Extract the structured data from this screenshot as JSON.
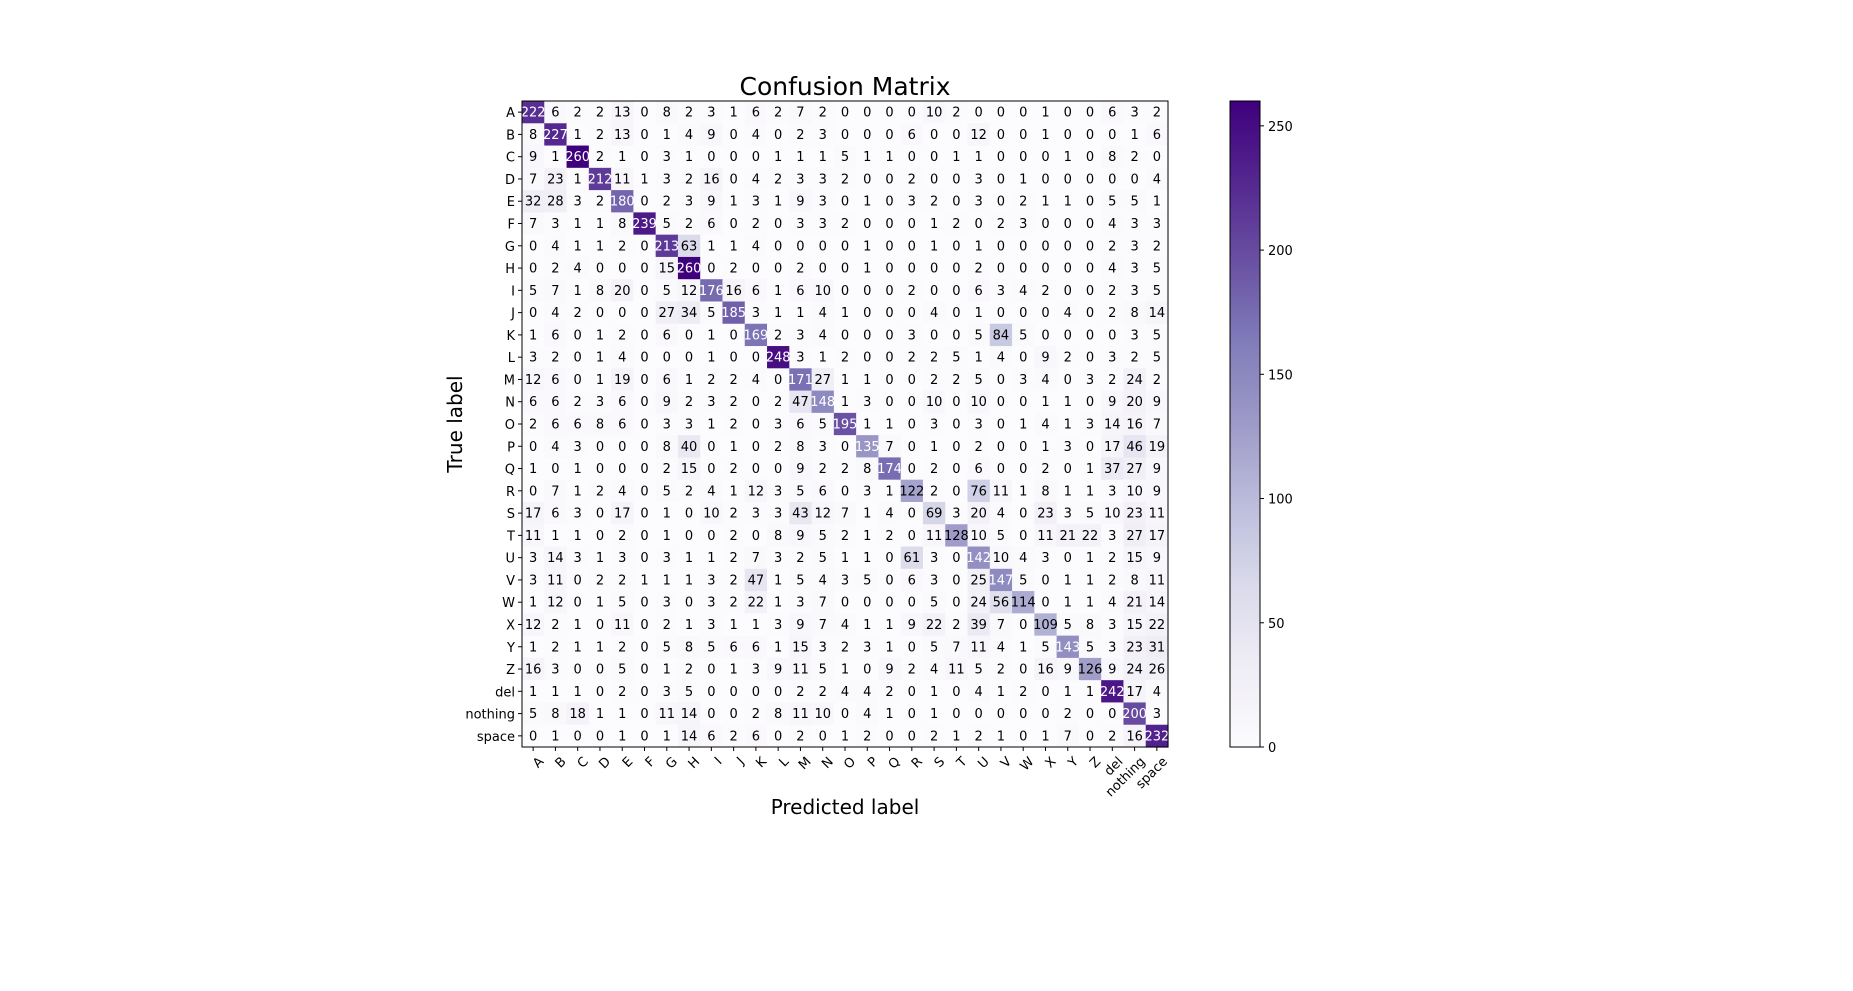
{
  "chart_data": {
    "type": "heatmap",
    "title": "Confusion Matrix",
    "xlabel": "Predicted label",
    "ylabel": "True label",
    "labels": [
      "A",
      "B",
      "C",
      "D",
      "E",
      "F",
      "G",
      "H",
      "I",
      "J",
      "K",
      "L",
      "M",
      "N",
      "O",
      "P",
      "Q",
      "R",
      "S",
      "T",
      "U",
      "V",
      "W",
      "X",
      "Y",
      "Z",
      "del",
      "nothing",
      "space"
    ],
    "matrix": [
      [
        222,
        6,
        2,
        2,
        13,
        0,
        8,
        2,
        3,
        1,
        6,
        2,
        7,
        2,
        0,
        0,
        0,
        0,
        10,
        2,
        0,
        0,
        0,
        1,
        0,
        0,
        6,
        3,
        2
      ],
      [
        8,
        227,
        1,
        2,
        13,
        0,
        1,
        4,
        9,
        0,
        4,
        0,
        2,
        3,
        0,
        0,
        0,
        6,
        0,
        0,
        12,
        0,
        0,
        1,
        0,
        0,
        0,
        1,
        6
      ],
      [
        9,
        1,
        260,
        2,
        1,
        0,
        3,
        1,
        0,
        0,
        0,
        1,
        1,
        1,
        5,
        1,
        1,
        0,
        0,
        1,
        1,
        0,
        0,
        0,
        1,
        0,
        8,
        2,
        0
      ],
      [
        7,
        23,
        1,
        212,
        11,
        1,
        3,
        2,
        16,
        0,
        4,
        2,
        3,
        3,
        2,
        0,
        0,
        2,
        0,
        0,
        3,
        0,
        1,
        0,
        0,
        0,
        0,
        0,
        4
      ],
      [
        32,
        28,
        3,
        2,
        180,
        0,
        2,
        3,
        9,
        1,
        3,
        1,
        9,
        3,
        0,
        1,
        0,
        3,
        2,
        0,
        3,
        0,
        2,
        1,
        1,
        0,
        5,
        5,
        1
      ],
      [
        7,
        3,
        1,
        1,
        8,
        239,
        5,
        2,
        6,
        0,
        2,
        0,
        3,
        3,
        2,
        0,
        0,
        0,
        1,
        2,
        0,
        2,
        3,
        0,
        0,
        0,
        4,
        3,
        3
      ],
      [
        0,
        4,
        1,
        1,
        2,
        0,
        213,
        63,
        1,
        1,
        4,
        0,
        0,
        0,
        0,
        1,
        0,
        0,
        1,
        0,
        1,
        0,
        0,
        0,
        0,
        0,
        2,
        3,
        2
      ],
      [
        0,
        2,
        4,
        0,
        0,
        0,
        15,
        260,
        0,
        2,
        0,
        0,
        2,
        0,
        0,
        1,
        0,
        0,
        0,
        0,
        2,
        0,
        0,
        0,
        0,
        0,
        4,
        3,
        5
      ],
      [
        5,
        7,
        1,
        8,
        20,
        0,
        5,
        12,
        176,
        16,
        6,
        1,
        6,
        10,
        0,
        0,
        0,
        2,
        0,
        0,
        6,
        3,
        4,
        2,
        0,
        0,
        2,
        3,
        5
      ],
      [
        0,
        4,
        2,
        0,
        0,
        0,
        27,
        34,
        5,
        185,
        3,
        1,
        1,
        4,
        1,
        0,
        0,
        0,
        4,
        0,
        1,
        0,
        0,
        0,
        4,
        0,
        2,
        8,
        14
      ],
      [
        1,
        6,
        0,
        1,
        2,
        0,
        6,
        0,
        1,
        0,
        169,
        2,
        3,
        4,
        0,
        0,
        0,
        3,
        0,
        0,
        5,
        84,
        5,
        0,
        0,
        0,
        0,
        3,
        5
      ],
      [
        3,
        2,
        0,
        1,
        4,
        0,
        0,
        0,
        1,
        0,
        0,
        248,
        3,
        1,
        2,
        0,
        0,
        2,
        2,
        5,
        1,
        4,
        0,
        9,
        2,
        0,
        3,
        2,
        5
      ],
      [
        12,
        6,
        0,
        1,
        19,
        0,
        6,
        1,
        2,
        2,
        4,
        0,
        171,
        27,
        1,
        1,
        0,
        0,
        2,
        2,
        5,
        0,
        3,
        4,
        0,
        3,
        2,
        24,
        2
      ],
      [
        6,
        6,
        2,
        3,
        6,
        0,
        9,
        2,
        3,
        2,
        0,
        2,
        47,
        148,
        1,
        3,
        0,
        0,
        10,
        0,
        10,
        0,
        0,
        1,
        1,
        0,
        9,
        20,
        9
      ],
      [
        2,
        6,
        6,
        8,
        6,
        0,
        3,
        3,
        1,
        2,
        0,
        3,
        6,
        5,
        195,
        1,
        1,
        0,
        3,
        0,
        3,
        0,
        1,
        4,
        1,
        3,
        14,
        16,
        7
      ],
      [
        0,
        4,
        3,
        0,
        0,
        0,
        8,
        40,
        0,
        1,
        0,
        2,
        8,
        3,
        0,
        135,
        7,
        0,
        1,
        0,
        2,
        0,
        0,
        1,
        3,
        0,
        17,
        46,
        19
      ],
      [
        1,
        0,
        1,
        0,
        0,
        0,
        2,
        15,
        0,
        2,
        0,
        0,
        9,
        2,
        2,
        8,
        174,
        0,
        2,
        0,
        6,
        0,
        0,
        2,
        0,
        1,
        37,
        27,
        9
      ],
      [
        0,
        7,
        1,
        2,
        4,
        0,
        5,
        2,
        4,
        1,
        12,
        3,
        5,
        6,
        0,
        3,
        1,
        122,
        2,
        0,
        76,
        11,
        1,
        8,
        1,
        1,
        3,
        10,
        9
      ],
      [
        17,
        6,
        3,
        0,
        17,
        0,
        1,
        0,
        10,
        2,
        3,
        3,
        43,
        12,
        7,
        1,
        4,
        0,
        69,
        3,
        20,
        4,
        0,
        23,
        3,
        5,
        10,
        23,
        11
      ],
      [
        11,
        1,
        1,
        0,
        2,
        0,
        1,
        0,
        0,
        2,
        0,
        8,
        9,
        5,
        2,
        1,
        2,
        0,
        11,
        128,
        10,
        5,
        0,
        11,
        21,
        22,
        3,
        27,
        17
      ],
      [
        3,
        14,
        3,
        1,
        3,
        0,
        3,
        1,
        1,
        2,
        7,
        3,
        2,
        5,
        1,
        1,
        0,
        61,
        3,
        0,
        142,
        10,
        4,
        3,
        0,
        1,
        2,
        15,
        9
      ],
      [
        3,
        11,
        0,
        2,
        2,
        1,
        1,
        1,
        3,
        2,
        47,
        1,
        5,
        4,
        3,
        5,
        0,
        6,
        3,
        0,
        25,
        147,
        5,
        0,
        1,
        1,
        2,
        8,
        11
      ],
      [
        1,
        12,
        0,
        1,
        5,
        0,
        3,
        0,
        3,
        2,
        22,
        1,
        3,
        7,
        0,
        0,
        0,
        0,
        5,
        0,
        24,
        56,
        114,
        0,
        1,
        1,
        4,
        21,
        14
      ],
      [
        12,
        2,
        1,
        0,
        11,
        0,
        2,
        1,
        3,
        1,
        1,
        3,
        9,
        7,
        4,
        1,
        1,
        9,
        22,
        2,
        39,
        7,
        0,
        109,
        5,
        8,
        3,
        15,
        22
      ],
      [
        1,
        2,
        1,
        1,
        2,
        0,
        5,
        8,
        5,
        6,
        6,
        1,
        15,
        3,
        2,
        3,
        1,
        0,
        5,
        7,
        11,
        4,
        1,
        5,
        143,
        5,
        3,
        23,
        31
      ],
      [
        16,
        3,
        0,
        0,
        5,
        0,
        1,
        2,
        0,
        1,
        3,
        9,
        11,
        5,
        1,
        0,
        9,
        2,
        4,
        11,
        5,
        2,
        0,
        16,
        9,
        126,
        9,
        24,
        26
      ],
      [
        1,
        1,
        1,
        0,
        2,
        0,
        3,
        5,
        0,
        0,
        0,
        0,
        2,
        2,
        4,
        4,
        2,
        0,
        1,
        0,
        4,
        1,
        2,
        0,
        1,
        1,
        242,
        17,
        4
      ],
      [
        5,
        8,
        18,
        1,
        1,
        0,
        11,
        14,
        0,
        0,
        2,
        8,
        11,
        10,
        0,
        4,
        1,
        0,
        1,
        0,
        0,
        0,
        0,
        0,
        2,
        0,
        0,
        200,
        3
      ],
      [
        0,
        1,
        0,
        0,
        1,
        0,
        1,
        14,
        6,
        2,
        6,
        0,
        2,
        0,
        1,
        2,
        0,
        0,
        2,
        1,
        2,
        1,
        0,
        1,
        7,
        0,
        2,
        16,
        232
      ]
    ],
    "vmin": 0,
    "vmax": 260,
    "colormap": "Purples",
    "colormap_stops": [
      "#fcfbfd",
      "#efedf5",
      "#dadaeb",
      "#bcbddc",
      "#9e9ac8",
      "#807dba",
      "#6a51a3",
      "#54278f",
      "#3f007d"
    ],
    "colorbar_ticks": [
      0,
      50,
      100,
      150,
      200,
      250
    ],
    "text_color_dark": "#000000",
    "text_color_light": "#ffffff",
    "grid": false
  }
}
